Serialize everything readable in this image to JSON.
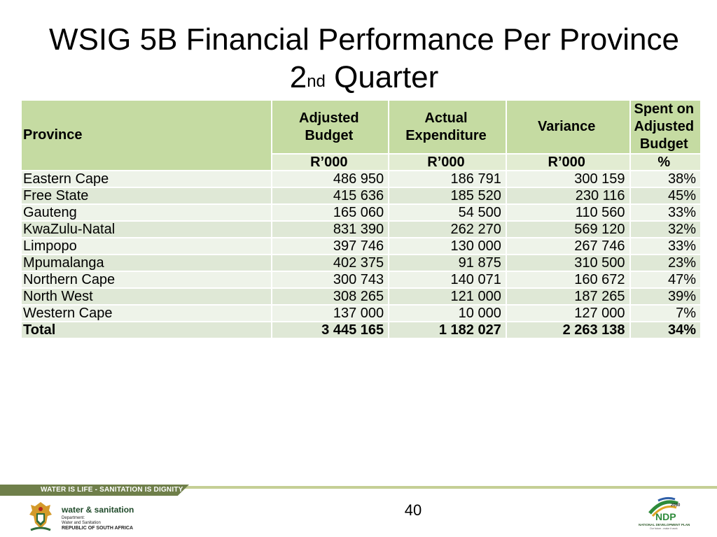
{
  "slide": {
    "title_line1": "WSIG 5B Financial Performance Per Province",
    "title_line2_prefix": "2",
    "title_line2_sup": "nd",
    "title_line2_suffix": " Quarter",
    "page_number": "40"
  },
  "table": {
    "headers": {
      "province": "Province",
      "adjusted_budget": "Adjusted Budget",
      "actual_expenditure": "Actual Expenditure",
      "variance": "Variance",
      "spent": "Spent on Adjusted Budget"
    },
    "units": {
      "adjusted_budget": "R’000",
      "actual_expenditure": "R’000",
      "variance": "R’000",
      "spent": "%"
    },
    "rows": [
      {
        "province": "Eastern Cape",
        "budget": "486 950",
        "expenditure": "186 791",
        "variance": "300 159",
        "spent": "38%"
      },
      {
        "province": "Free State",
        "budget": "415 636",
        "expenditure": "185 520",
        "variance": "230 116",
        "spent": "45%"
      },
      {
        "province": "Gauteng",
        "budget": "165 060",
        "expenditure": "54 500",
        "variance": "110 560",
        "spent": "33%"
      },
      {
        "province": "KwaZulu-Natal",
        "budget": "831 390",
        "expenditure": "262 270",
        "variance": "569 120",
        "spent": "32%"
      },
      {
        "province": "Limpopo",
        "budget": "397 746",
        "expenditure": "130 000",
        "variance": "267 746",
        "spent": "33%"
      },
      {
        "province": "Mpumalanga",
        "budget": "402 375",
        "expenditure": "91 875",
        "variance": "310 500",
        "spent": "23%"
      },
      {
        "province": "Northern Cape",
        "budget": "300 743",
        "expenditure": "140 071",
        "variance": "160 672",
        "spent": "47%"
      },
      {
        "province": "North West",
        "budget": "308 265",
        "expenditure": "121 000",
        "variance": "187 265",
        "spent": "39%"
      },
      {
        "province": "Western Cape",
        "budget": "137 000",
        "expenditure": "10 000",
        "variance": "127 000",
        "spent": "7%"
      }
    ],
    "total": {
      "province": "Total",
      "budget": "3 445 165",
      "expenditure": "1 182 027",
      "variance": "2 263 138",
      "spent": "34%"
    }
  },
  "footer": {
    "tagline": "WATER IS LIFE - SANITATION IS DIGNITY",
    "dept_name": "water & sanitation",
    "dept_line1": "Department:",
    "dept_line2": "Water and Sanitation",
    "dept_line3": "REPUBLIC OF SOUTH AFRICA",
    "ndp_logo_text": "NDP",
    "ndp_year": "2030",
    "ndp_caption": "NATIONAL DEVELOPMENT PLAN",
    "ndp_sub": "Our future - make it work"
  },
  "colors": {
    "header_green": "#c5dba2",
    "units_green": "#e2ecd2",
    "row_light": "#eef3e9",
    "row_dark": "#dfe8d6",
    "band_dark": "#6f7f4a",
    "band_light": "#c5cf95"
  },
  "icons": {
    "crest": "coat-of-arms-icon",
    "ndp": "ndp-logo-icon"
  }
}
